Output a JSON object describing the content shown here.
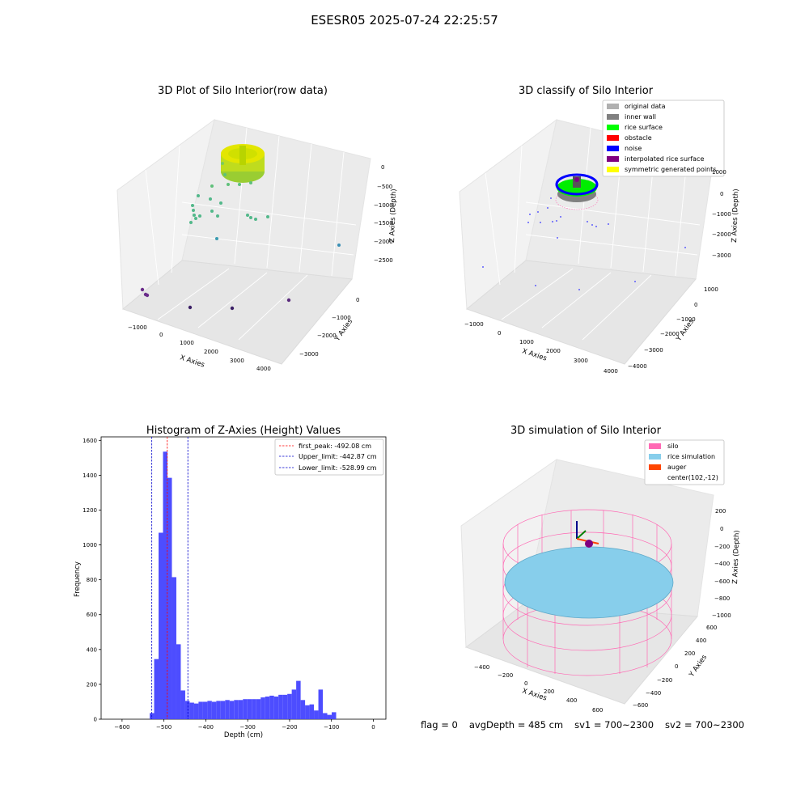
{
  "figure": {
    "suptitle": "ESESR05 2025-07-24 22:25:57"
  },
  "status": {
    "flag": "flag = 0",
    "avg_depth": "avgDepth = 485 cm",
    "sv1": "sv1 = 700~2300",
    "sv2": "sv2 = 700~2300"
  },
  "colors": {
    "hist_bar": "#4d4dff",
    "first_peak_line": "#ff0000",
    "limit_line": "#0000cc",
    "silo": "#ff69b4",
    "rice_simulation": "#87ceeb",
    "auger": "#ff4500",
    "classify_original": "#b0b0b0",
    "classify_inner_wall": "#808080",
    "classify_rice_surface": "#00ff00",
    "classify_obstacle": "#ff0000",
    "classify_noise": "#0000ff",
    "classify_interpolated": "#800080",
    "classify_symmetric": "#ffff00"
  },
  "chart_data": [
    {
      "type": "scatter",
      "title": "3D Plot of Silo Interior(row data)",
      "xlabel": "X Axies",
      "ylabel": "Y Axies",
      "zlabel": "Z Axies (Depth)",
      "xticks": [
        "−1000",
        "0",
        "1000",
        "2000",
        "3000",
        "4000"
      ],
      "yticks": [
        "0",
        "−1000",
        "−2000",
        "−3000"
      ],
      "zticks": [
        "0",
        "−500",
        "−1000",
        "−1500",
        "−2000",
        "−2500"
      ]
    },
    {
      "type": "scatter",
      "title": "3D classify of Silo Interior",
      "xlabel": "X Axies",
      "ylabel": "Y Axies",
      "zlabel": "Z Axies (Depth)",
      "xticks": [
        "−1000",
        "0",
        "1000",
        "2000",
        "3000",
        "4000"
      ],
      "yticks": [
        "1000",
        "0",
        "−1000",
        "−2000",
        "−3000",
        "−4000"
      ],
      "zticks": [
        "1000",
        "0",
        "−1000",
        "−2000",
        "−3000"
      ],
      "legend": [
        "original data",
        "inner wall",
        "rice surface",
        "obstacle",
        "noise",
        "interpolated rice surface",
        "symmetric generated points"
      ]
    },
    {
      "type": "bar",
      "title": "Histogram of Z-Axies (Height) Values",
      "xlabel": "Depth (cm)",
      "ylabel": "Frequency",
      "xlim": [
        -650,
        30
      ],
      "ylim": [
        0,
        1620
      ],
      "xticks": [
        -600,
        -500,
        -400,
        -300,
        -200,
        -100,
        0
      ],
      "yticks": [
        0,
        200,
        400,
        600,
        800,
        1000,
        1200,
        1400,
        1600
      ],
      "bin_width": 10.6,
      "bin_start": -534.0,
      "values": [
        35,
        345,
        1070,
        1535,
        1385,
        815,
        430,
        165,
        105,
        95,
        90,
        100,
        100,
        105,
        100,
        105,
        105,
        110,
        105,
        110,
        110,
        115,
        115,
        115,
        115,
        125,
        130,
        135,
        130,
        140,
        140,
        145,
        170,
        220,
        110,
        80,
        85,
        50,
        170,
        35,
        25,
        40
      ],
      "lines": [
        {
          "label": "first_peak: -492.08 cm",
          "x": -492.08,
          "color": "#ff0000"
        },
        {
          "label": "Upper_limit: -442.87 cm",
          "x": -442.87,
          "color": "#0000cc"
        },
        {
          "label": "Lower_limit: -528.99 cm",
          "x": -528.99,
          "color": "#0000cc"
        }
      ]
    },
    {
      "type": "scatter",
      "title": "3D simulation of Silo Interior",
      "xlabel": "X Axies",
      "ylabel": "Y Axies",
      "zlabel": "Z Axies (Depth)",
      "xticks": [
        "−400",
        "−200",
        "0",
        "200",
        "400",
        "600"
      ],
      "yticks": [
        "600",
        "400",
        "200",
        "0",
        "−200",
        "−400",
        "−600"
      ],
      "zticks": [
        "200",
        "0",
        "−200",
        "−400",
        "−600",
        "−800",
        "−1000"
      ],
      "legend": [
        "silo",
        "rice simulation",
        "auger",
        "center(102,-12)"
      ]
    }
  ]
}
